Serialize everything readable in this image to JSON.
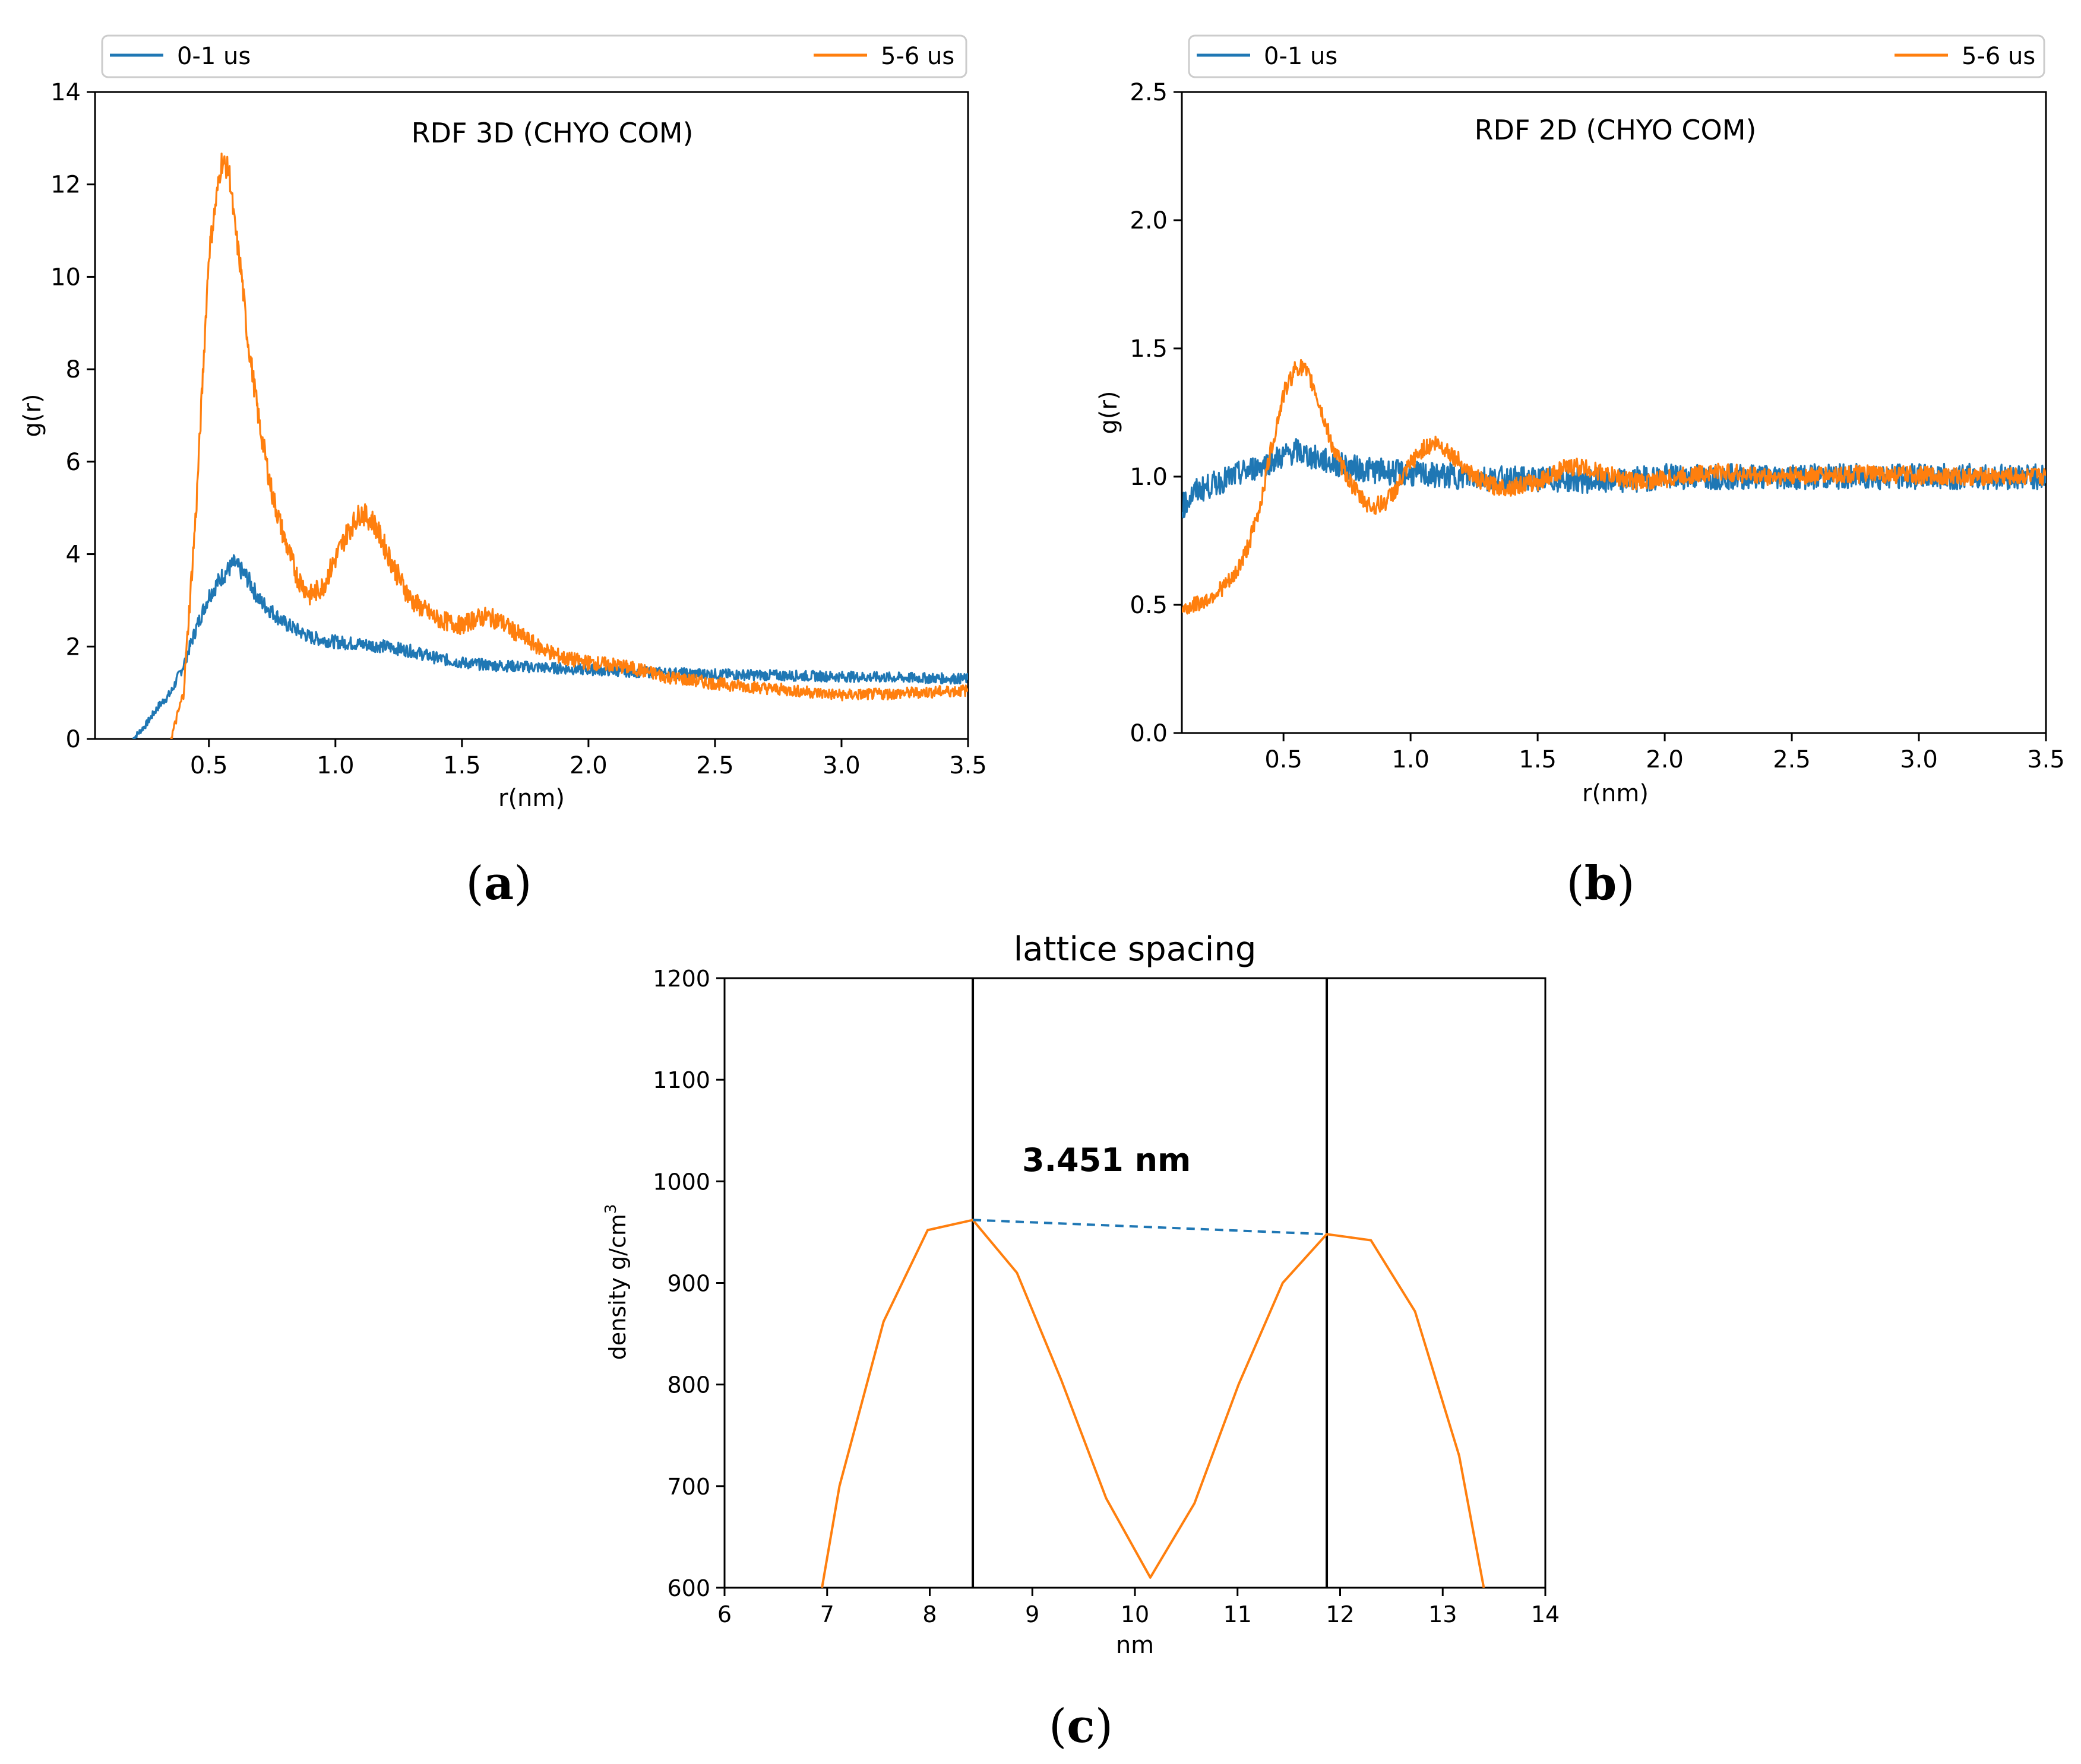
{
  "panels": [
    {
      "label_open": "(",
      "label": "a",
      "label_close": ")"
    },
    {
      "label_open": "(",
      "label": "b",
      "label_close": ")"
    },
    {
      "label_open": "(",
      "label": "c",
      "label_close": ")"
    }
  ],
  "colors": {
    "blue": "#1f77b4",
    "orange": "#ff7f0e",
    "axis": "#000000"
  },
  "chart_data": [
    {
      "id": "rdf3d",
      "type": "line",
      "title": "RDF 3D (CHYO COM)",
      "xlabel": "r(nm)",
      "ylabel": "g(r)",
      "xlim": [
        0.05,
        3.5
      ],
      "ylim": [
        0,
        14
      ],
      "xticks": [
        0.5,
        1.0,
        1.5,
        2.0,
        2.5,
        3.0,
        3.5
      ],
      "xtick_labels": [
        "0.5",
        "1.0",
        "1.5",
        "2.0",
        "2.5",
        "3.0",
        "3.5"
      ],
      "yticks": [
        0,
        2,
        4,
        6,
        8,
        10,
        12,
        14
      ],
      "ytick_labels": [
        "0",
        "2",
        "4",
        "6",
        "8",
        "10",
        "12",
        "14"
      ],
      "legend": {
        "placement": "top, above plot",
        "entries": [
          "0-1 us",
          "5-6 us"
        ]
      },
      "series": [
        {
          "name": "0-1 us",
          "color": "#1f77b4",
          "noise": 0.2,
          "x": [
            0.2,
            0.25,
            0.3,
            0.35,
            0.4,
            0.45,
            0.5,
            0.55,
            0.6,
            0.65,
            0.7,
            0.8,
            0.9,
            1.0,
            1.1,
            1.2,
            1.3,
            1.4,
            1.5,
            1.6,
            1.8,
            2.0,
            2.2,
            2.5,
            3.0,
            3.5
          ],
          "y": [
            0.0,
            0.3,
            0.7,
            1.0,
            1.6,
            2.4,
            3.1,
            3.5,
            3.8,
            3.5,
            3.0,
            2.5,
            2.2,
            2.1,
            2.05,
            2.0,
            1.9,
            1.75,
            1.65,
            1.6,
            1.55,
            1.5,
            1.45,
            1.4,
            1.35,
            1.3
          ]
        },
        {
          "name": "5-6 us",
          "color": "#ff7f0e",
          "noise": 0.25,
          "x": [
            0.35,
            0.4,
            0.45,
            0.5,
            0.55,
            0.58,
            0.6,
            0.63,
            0.65,
            0.7,
            0.75,
            0.8,
            0.85,
            0.9,
            0.95,
            1.0,
            1.05,
            1.1,
            1.15,
            1.2,
            1.25,
            1.3,
            1.4,
            1.5,
            1.55,
            1.6,
            1.65,
            1.7,
            1.8,
            1.9,
            2.0,
            2.1,
            2.2,
            2.3,
            2.5,
            2.7,
            3.0,
            3.2,
            3.5
          ],
          "y": [
            0.0,
            1.0,
            5.0,
            10.5,
            12.5,
            12.3,
            11.2,
            10.0,
            8.8,
            6.8,
            5.3,
            4.3,
            3.5,
            3.1,
            3.3,
            3.9,
            4.5,
            4.9,
            4.7,
            4.1,
            3.5,
            3.0,
            2.6,
            2.45,
            2.6,
            2.65,
            2.55,
            2.35,
            2.0,
            1.75,
            1.65,
            1.6,
            1.5,
            1.35,
            1.2,
            1.1,
            0.95,
            0.98,
            1.05
          ]
        }
      ]
    },
    {
      "id": "rdf2d",
      "type": "line",
      "title": "RDF 2D (CHYO COM)",
      "xlabel": "r(nm)",
      "ylabel": "g(r)",
      "xlim": [
        0.1,
        3.5
      ],
      "ylim": [
        0.0,
        2.5
      ],
      "xticks": [
        0.5,
        1.0,
        1.5,
        2.0,
        2.5,
        3.0,
        3.5
      ],
      "xtick_labels": [
        "0.5",
        "1.0",
        "1.5",
        "2.0",
        "2.5",
        "3.0",
        "3.5"
      ],
      "yticks": [
        0.0,
        0.5,
        1.0,
        1.5,
        2.0,
        2.5
      ],
      "ytick_labels": [
        "0.0",
        "0.5",
        "1.0",
        "1.5",
        "2.0",
        "2.5"
      ],
      "legend": {
        "placement": "top, above plot",
        "entries": [
          "0-1 us",
          "5-6 us"
        ]
      },
      "series": [
        {
          "name": "0-1 us",
          "color": "#1f77b4",
          "noise": 0.05,
          "x": [
            0.1,
            0.15,
            0.2,
            0.3,
            0.4,
            0.5,
            0.55,
            0.6,
            0.7,
            0.8,
            0.9,
            1.0,
            1.2,
            1.4,
            1.6,
            1.8,
            2.0,
            2.5,
            3.0,
            3.5
          ],
          "y": [
            0.88,
            0.94,
            0.96,
            1.0,
            1.04,
            1.08,
            1.1,
            1.08,
            1.05,
            1.03,
            1.02,
            1.01,
            1.0,
            0.99,
            0.99,
            0.98,
            1.0,
            1.0,
            1.0,
            1.0
          ]
        },
        {
          "name": "5-6 us",
          "color": "#ff7f0e",
          "noise": 0.035,
          "x": [
            0.1,
            0.2,
            0.3,
            0.35,
            0.4,
            0.45,
            0.5,
            0.55,
            0.58,
            0.62,
            0.65,
            0.7,
            0.75,
            0.8,
            0.85,
            0.9,
            0.95,
            1.0,
            1.05,
            1.1,
            1.15,
            1.2,
            1.25,
            1.3,
            1.35,
            1.4,
            1.5,
            1.6,
            1.65,
            1.7,
            1.8,
            1.9,
            2.0,
            2.2,
            2.4,
            2.8,
            3.2,
            3.5
          ],
          "y": [
            0.48,
            0.52,
            0.6,
            0.7,
            0.85,
            1.1,
            1.32,
            1.43,
            1.42,
            1.35,
            1.25,
            1.1,
            1.0,
            0.92,
            0.88,
            0.9,
            0.96,
            1.05,
            1.11,
            1.13,
            1.1,
            1.05,
            1.0,
            0.97,
            0.96,
            0.96,
            0.98,
            1.03,
            1.04,
            1.03,
            1.0,
            0.98,
            0.99,
            1.02,
            1.0,
            1.01,
            1.0,
            1.0
          ]
        }
      ]
    },
    {
      "id": "lattice",
      "type": "line",
      "title": "lattice spacing",
      "xlabel": "nm",
      "ylabel": "density g/cm",
      "ylabel_superscript": "3",
      "xlim": [
        6,
        14
      ],
      "ylim": [
        600,
        1200
      ],
      "xticks": [
        6,
        7,
        8,
        9,
        10,
        11,
        12,
        13,
        14
      ],
      "xtick_labels": [
        "6",
        "7",
        "8",
        "9",
        "10",
        "11",
        "12",
        "13",
        "14"
      ],
      "yticks": [
        600,
        700,
        800,
        900,
        1000,
        1100,
        1200
      ],
      "ytick_labels": [
        "600",
        "700",
        "800",
        "900",
        "1000",
        "1100",
        "1200"
      ],
      "annotation": "3.451 nm",
      "annotation_pos": [
        8.9,
        1010
      ],
      "vlines": [
        8.42,
        11.87
      ],
      "dashed_segment": {
        "x": [
          8.42,
          11.87
        ],
        "y": [
          962,
          948
        ],
        "color": "#1f77b4"
      },
      "series": [
        {
          "name": "density",
          "color": "#ff7f0e",
          "x": [
            6.95,
            7.12,
            7.55,
            7.98,
            8.42,
            8.85,
            9.28,
            9.72,
            10.15,
            10.58,
            11.01,
            11.44,
            11.87,
            12.3,
            12.73,
            13.16,
            13.4
          ],
          "y": [
            600,
            700,
            862,
            952,
            962,
            910,
            805,
            688,
            610,
            683,
            800,
            900,
            948,
            942,
            872,
            730,
            600
          ]
        }
      ]
    }
  ]
}
